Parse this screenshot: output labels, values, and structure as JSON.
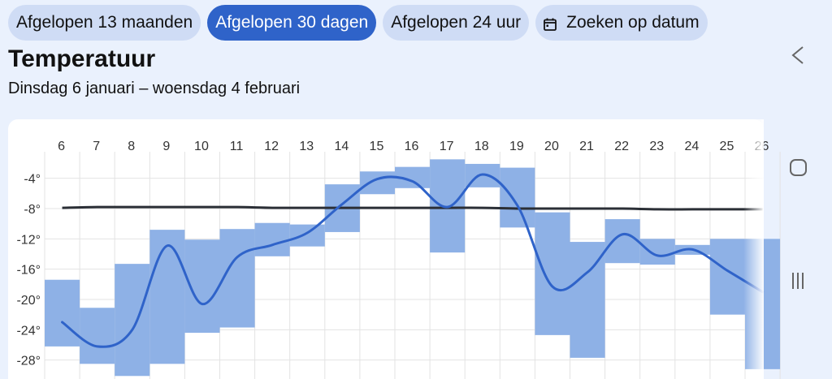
{
  "filters": {
    "items": [
      {
        "label": "Afgelopen 13 maanden",
        "active": false
      },
      {
        "label": "Afgelopen 30 dagen",
        "active": true
      },
      {
        "label": "Afgelopen 24 uur",
        "active": false
      },
      {
        "label": "Zoeken op datum",
        "active": false,
        "icon": "calendar-icon"
      }
    ]
  },
  "section": {
    "title": "Temperatuur",
    "date_range": "Dinsdag 6 januari – woensdag 4 februari"
  },
  "colors": {
    "accent": "#2f63c9",
    "band": "#8eb1e6",
    "line": "#2f63c9",
    "average": "#2b2f36",
    "grid": "#e3e3e3"
  },
  "system_nav": {
    "icons": [
      "back-icon",
      "home-icon",
      "recents-icon"
    ]
  },
  "chart_data": {
    "type": "area",
    "x_label": "",
    "y_label": "",
    "days": [
      "6",
      "7",
      "8",
      "9",
      "10",
      "11",
      "12",
      "13",
      "14",
      "15",
      "16",
      "17",
      "18",
      "19",
      "20",
      "21",
      "22",
      "23",
      "24",
      "25",
      "26"
    ],
    "y_ticks": [
      "-4°",
      "-8°",
      "-12°",
      "-16°",
      "-20°",
      "-24°",
      "-28°"
    ],
    "y_tick_values": [
      -4,
      -8,
      -12,
      -16,
      -20,
      -24,
      -28
    ],
    "ylim": [
      -30.5,
      -0.5
    ],
    "series": [
      {
        "kind": "range",
        "max": [
          -17.4,
          -21.1,
          -15.3,
          -10.8,
          -12.1,
          -10.7,
          -9.9,
          -10.1,
          -4.8,
          -3.1,
          -2.5,
          -1.5,
          -2.1,
          -2.6,
          -8.5,
          -12.4,
          -9.4,
          -12.0,
          -12.8,
          -12.0,
          -12.0
        ],
        "min": [
          -26.2,
          -28.5,
          -30.1,
          -28.5,
          -24.4,
          -23.7,
          -14.3,
          -13.0,
          -11.1,
          -6.1,
          -5.3,
          -13.8,
          -5.2,
          -10.5,
          -24.7,
          -27.7,
          -15.2,
          -15.4,
          -14.1,
          -22.0,
          -29.2
        ]
      },
      {
        "kind": "line",
        "values": [
          -23.0,
          -26.2,
          -24.0,
          -12.9,
          -20.6,
          -14.4,
          -12.8,
          -11.2,
          -7.4,
          -4.1,
          -4.4,
          -7.8,
          -3.5,
          -7.6,
          -18.3,
          -16.4,
          -11.4,
          -14.2,
          -13.4,
          -16.2,
          -19.0
        ]
      },
      {
        "kind": "average",
        "values": [
          -7.9,
          -7.8,
          -7.8,
          -7.8,
          -7.8,
          -7.8,
          -7.9,
          -7.9,
          -7.9,
          -7.9,
          -7.9,
          -7.9,
          -7.9,
          -8.0,
          -8.0,
          -8.0,
          -8.0,
          -8.1,
          -8.1,
          -8.1,
          -8.1
        ]
      }
    ]
  }
}
